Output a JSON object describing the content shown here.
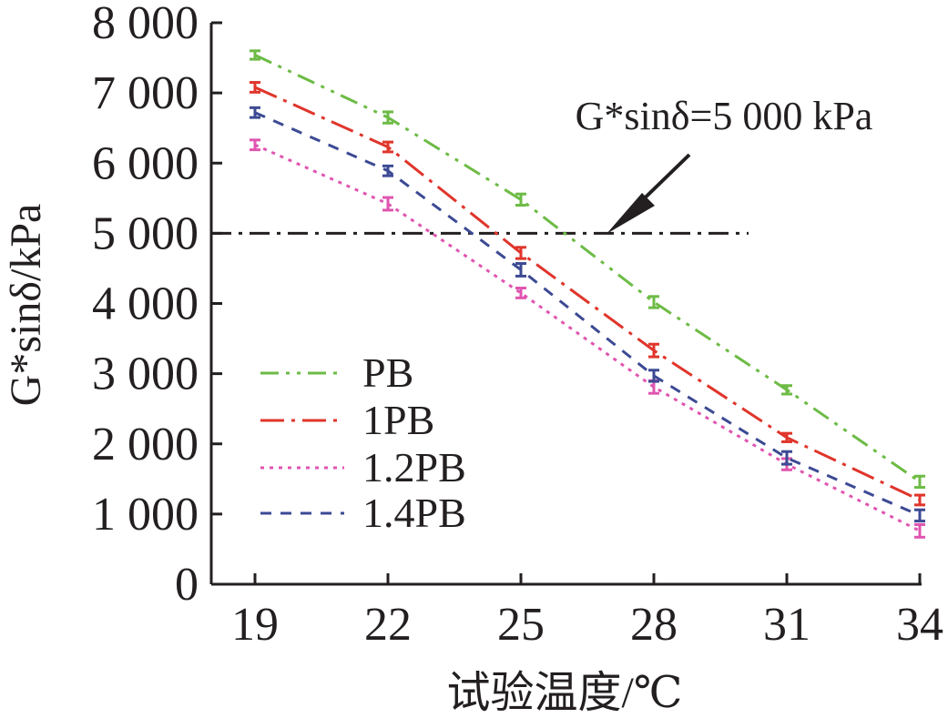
{
  "chart_data": {
    "type": "line",
    "xlabel": "试验温度/℃",
    "ylabel": "G*sinδ/kPa",
    "x": [
      19,
      22,
      25,
      28,
      31,
      34
    ],
    "xlim": [
      19,
      34
    ],
    "ylim": [
      0,
      8000
    ],
    "x_ticks": [
      "19",
      "22",
      "25",
      "28",
      "31",
      "34"
    ],
    "y_ticks": [
      "0",
      "1 000",
      "2 000",
      "3 000",
      "4 000",
      "5 000",
      "6 000",
      "7 000",
      "8 000"
    ],
    "legend_position": "lower-left",
    "series": [
      {
        "name": "PB",
        "color": "#6dbb45",
        "dash": "dash-dot-dot",
        "values": [
          7540,
          6650,
          5480,
          4020,
          2770,
          1460
        ],
        "errors": [
          60,
          80,
          80,
          80,
          60,
          80
        ]
      },
      {
        "name": "1PB",
        "color": "#e0352b",
        "dash": "dash-dot",
        "values": [
          7080,
          6230,
          4720,
          3330,
          2090,
          1200
        ],
        "errors": [
          70,
          70,
          80,
          90,
          60,
          70
        ]
      },
      {
        "name": "1.2PB",
        "color": "#e055b0",
        "dash": "dot",
        "values": [
          6260,
          5420,
          4150,
          2810,
          1710,
          760
        ],
        "errors": [
          70,
          90,
          70,
          90,
          80,
          90
        ]
      },
      {
        "name": "1.4PB",
        "color": "#3c4a94",
        "dash": "dash",
        "values": [
          6720,
          5890,
          4480,
          2970,
          1800,
          980
        ],
        "errors": [
          70,
          70,
          90,
          80,
          90,
          80
        ]
      }
    ],
    "reference_line": {
      "y": 5000,
      "label": "G*sinδ=5 000 kPa",
      "color": "#231f20"
    }
  }
}
